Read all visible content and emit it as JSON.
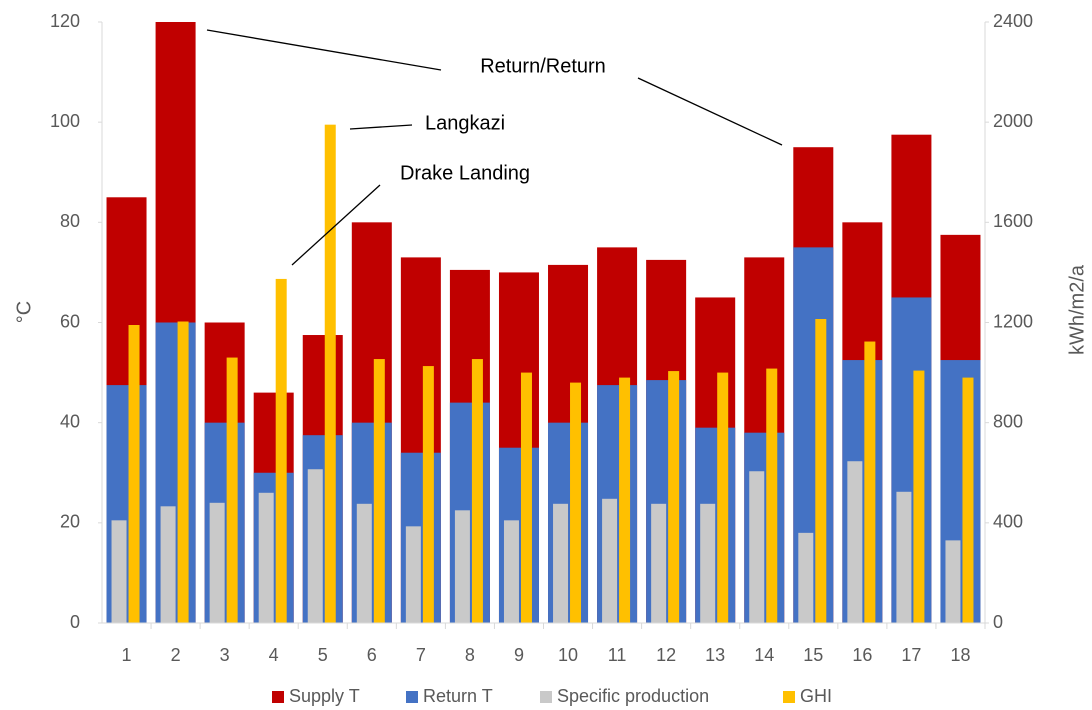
{
  "chart_data": {
    "type": "bar",
    "categories": [
      "1",
      "2",
      "3",
      "4",
      "5",
      "6",
      "7",
      "8",
      "9",
      "10",
      "11",
      "12",
      "13",
      "14",
      "15",
      "16",
      "17",
      "18"
    ],
    "series": [
      {
        "name": "Supply T",
        "color": "#c00000",
        "values": [
          85,
          120,
          60,
          46,
          57.5,
          80,
          73,
          70.5,
          70,
          71.5,
          75,
          72.5,
          65,
          73,
          95,
          80,
          97.5,
          77.5
        ]
      },
      {
        "name": "Return T",
        "color": "#4472c4",
        "values": [
          47.5,
          60,
          40,
          30,
          37.5,
          40,
          34,
          44,
          35,
          40,
          47.5,
          48.5,
          39,
          38,
          75,
          52.5,
          65,
          52.5
        ]
      },
      {
        "name": "Specific production",
        "color": "#c9c9c9",
        "axis": "y2",
        "values": [
          410,
          466,
          480,
          520,
          614,
          476,
          386,
          450,
          410,
          476,
          496,
          476,
          476,
          606,
          360,
          646,
          524,
          330
        ]
      },
      {
        "name": "GHI",
        "color": "#ffc000",
        "axis": "y2",
        "values": [
          1190,
          1204,
          1060,
          1374,
          1990,
          1054,
          1026,
          1054,
          1000,
          960,
          980,
          1006,
          1000,
          1016,
          1214,
          1124,
          1008,
          980
        ]
      }
    ],
    "ylabel": "°C",
    "y2label": "kWh/m2/a",
    "ylim": [
      0,
      120
    ],
    "yticks": [
      0,
      20,
      40,
      60,
      80,
      100,
      120
    ],
    "y2lim": [
      0,
      2400
    ],
    "y2ticks": [
      0,
      400,
      800,
      1200,
      1600,
      2000,
      2400
    ],
    "annotations": [
      "Return/Return",
      "Langkazi",
      "Drake Landing"
    ],
    "legend": "bottom",
    "grid": false
  }
}
